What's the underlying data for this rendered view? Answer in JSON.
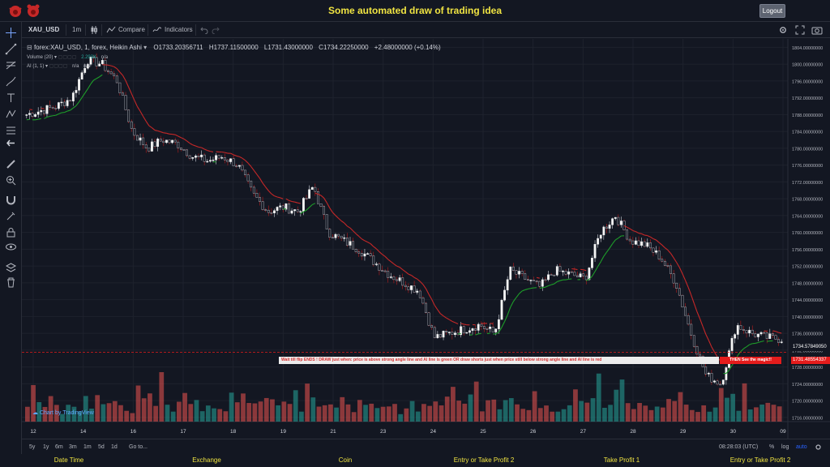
{
  "app": {
    "title": "Some automated draw of trading idea",
    "logout_label": "Logout"
  },
  "toolbar": {
    "symbol": "XAU_USD",
    "interval": "1m",
    "compare_label": "Compare",
    "indicators_label": "Indicators"
  },
  "legend": {
    "main": "forex:XAU_USD, 1, forex, Heikin Ashi",
    "open": "O1733.20356711",
    "high": "H1737.11500000",
    "low": "L1731.43000000",
    "close": "C1734.22250000",
    "change": "+2.48000000 (+0.14%)",
    "volume_label": "Volume (20)",
    "volume_value": "2.293K",
    "volume_extra": "n/a",
    "ai_label": "AI (1, 1)",
    "ai_v1": "n/a",
    "ai_v2": "n/a"
  },
  "annotation": {
    "instructions": "Wait till flip ENDS  !   DRAW just when:  price is above strong angle line and AI line is green          OR          draw shorts just when price still below strong angle line and AI line is red",
    "magic": "THEN See the magic!!"
  },
  "price_tags": {
    "current": "1734.57849050",
    "level": "1731.48554337"
  },
  "watermark": "Chart by TradingView",
  "bottom": {
    "ranges": [
      "5y",
      "1y",
      "6m",
      "3m",
      "1m",
      "5d",
      "1d"
    ],
    "goto": "Go to...",
    "time": "08:28:03 (UTC)",
    "percent": "%",
    "log": "log",
    "auto": "auto"
  },
  "footer": [
    "Date Time",
    "Exchange",
    "Coin",
    "Entry or Take Profit 2",
    "Take Profit 1",
    "Entry or Take Profit 2"
  ],
  "colors": {
    "up": "#26a69a",
    "down": "#ef5350",
    "bg": "#131722",
    "accent": "#f0e442",
    "ai_green": "#1e9e2a",
    "ai_red": "#c62828"
  },
  "chart_data": {
    "type": "candlestick",
    "y_ticks": [
      "1804.00000000",
      "1800.00000000",
      "1796.00000000",
      "1792.00000000",
      "1788.00000000",
      "1784.00000000",
      "1780.00000000",
      "1776.00000000",
      "1772.00000000",
      "1768.00000000",
      "1764.00000000",
      "1760.00000000",
      "1756.00000000",
      "1752.00000000",
      "1748.00000000",
      "1744.00000000",
      "1740.00000000",
      "1736.00000000",
      "1732.00000000",
      "1728.00000000",
      "1724.00000000",
      "1720.00000000",
      "1716.00000000"
    ],
    "ylim": [
      1715,
      1806
    ],
    "x_ticks": [
      "12",
      "14",
      "16",
      "17",
      "18",
      "19",
      "21",
      "23",
      "24",
      "25",
      "26",
      "27",
      "28",
      "29",
      "30",
      "09"
    ],
    "price_path": [
      1788,
      1789,
      1790,
      1792,
      1801,
      1800,
      1796,
      1784,
      1780,
      1782,
      1781,
      1778,
      1777,
      1778,
      1776,
      1769,
      1765,
      1766,
      1765,
      1771,
      1760,
      1758,
      1756,
      1753,
      1750,
      1748,
      1746,
      1735,
      1736,
      1737,
      1738,
      1736,
      1751,
      1749,
      1747,
      1751,
      1750,
      1749,
      1760,
      1764,
      1758,
      1757,
      1754,
      1748,
      1736,
      1726,
      1724,
      1738,
      1736,
      1735,
      1734.6
    ],
    "volume_scale": [
      0.3,
      0.4,
      0.6,
      0.35,
      0.7,
      0.5,
      0.3,
      0.6,
      0.45,
      0.4,
      0.35,
      0.5,
      0.3,
      0.4,
      0.35,
      0.6,
      0.5,
      0.4,
      0.3,
      0.4,
      0.5,
      0.35,
      0.45,
      0.3,
      0.5,
      0.6,
      0.4,
      0.7,
      0.3,
      0.4,
      0.35,
      0.5,
      0.4,
      0.3,
      0.4,
      0.45,
      0.3,
      0.35,
      0.6,
      0.5,
      0.4,
      0.35,
      0.5,
      0.7,
      0.4,
      0.3,
      0.9,
      0.5,
      0.4,
      0.3
    ]
  }
}
